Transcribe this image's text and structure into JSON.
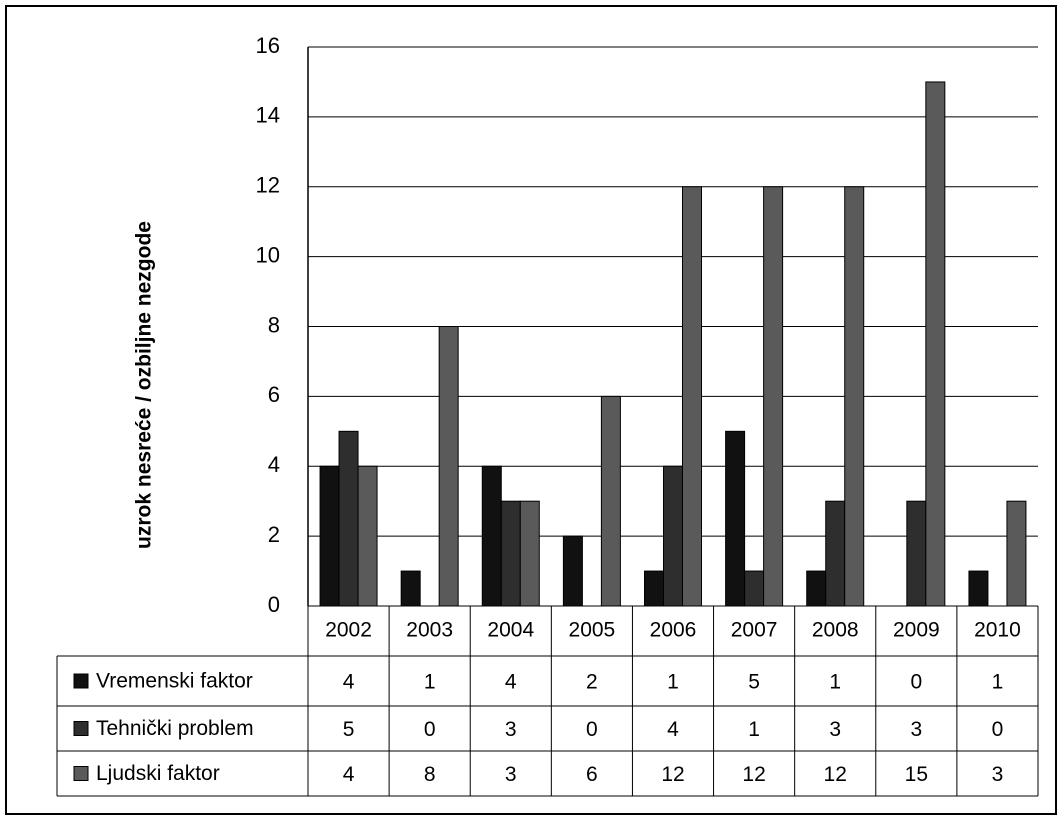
{
  "chart_data": {
    "type": "bar",
    "y_axis_label": "uzrok nesreće / ozbiljne nezgode",
    "categories": [
      "2002",
      "2003",
      "2004",
      "2005",
      "2006",
      "2007",
      "2008",
      "2009",
      "2010"
    ],
    "series": [
      {
        "name": "Vremenski faktor",
        "color": "#111111",
        "values": [
          4,
          1,
          4,
          2,
          1,
          5,
          1,
          0,
          1
        ]
      },
      {
        "name": "Tehnički problem",
        "color": "#2e2e2e",
        "values": [
          5,
          0,
          3,
          0,
          4,
          1,
          3,
          3,
          0
        ]
      },
      {
        "name": "Ljudski faktor",
        "color": "#5a5a5a",
        "values": [
          4,
          8,
          3,
          6,
          12,
          12,
          12,
          15,
          3
        ]
      }
    ],
    "ylim": [
      0,
      16
    ],
    "yticks": [
      0,
      2,
      4,
      6,
      8,
      10,
      12,
      14,
      16
    ],
    "grid": true
  }
}
